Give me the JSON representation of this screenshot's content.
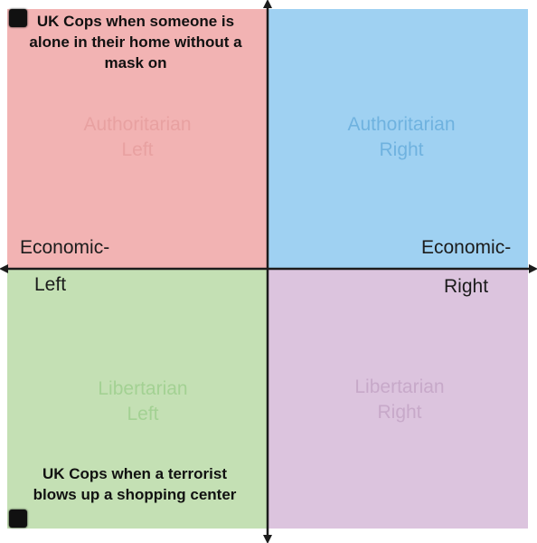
{
  "quadrants": {
    "top_left": {
      "label": [
        "Authoritarian",
        "Left"
      ],
      "color": "#f2b3b3"
    },
    "top_right": {
      "label": [
        "Authoritarian",
        "Right"
      ],
      "color": "#9fd1f2"
    },
    "bottom_left": {
      "label": [
        "Libertarian",
        "Left"
      ],
      "color": "#c4e0b4"
    },
    "bottom_right": {
      "label": [
        "Libertarian",
        "Right"
      ],
      "color": "#dcc4de"
    }
  },
  "axes": {
    "left": [
      "Economic-",
      "Left"
    ],
    "right": [
      "Economic-",
      "Right"
    ]
  },
  "annotations": {
    "top": "UK Cops when someone is alone in their home without a mask on",
    "bottom": "UK Cops when a terrorist blows up a shopping center"
  },
  "icons": {
    "marker": "black-square-marker",
    "arrows": "double-headed-arrow"
  }
}
